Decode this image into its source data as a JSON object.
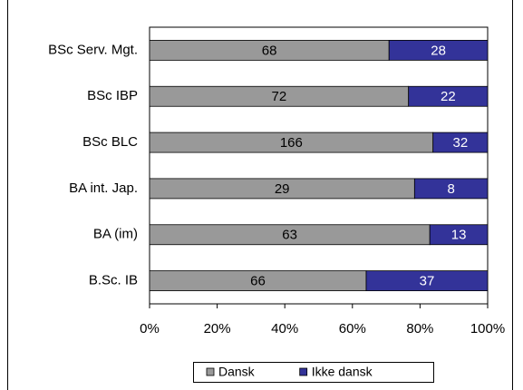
{
  "chart_data": {
    "type": "bar",
    "orientation": "horizontal",
    "stacked": "percent",
    "categories": [
      "BSc Serv. Mgt.",
      "BSc IBP",
      "BSc BLC",
      "BA int. Jap.",
      "BA (im)",
      "B.Sc. IB"
    ],
    "series": [
      {
        "name": "Dansk",
        "color": "#999999",
        "label_color": "#000000",
        "values": [
          68,
          72,
          166,
          29,
          63,
          66
        ]
      },
      {
        "name": "Ikke dansk",
        "color": "#333399",
        "label_color": "#ffffff",
        "values": [
          28,
          22,
          32,
          8,
          13,
          37
        ]
      }
    ],
    "xlim": [
      0,
      100
    ],
    "xticks": [
      {
        "value": 0,
        "label": "0%"
      },
      {
        "value": 20,
        "label": "20%"
      },
      {
        "value": 40,
        "label": "40%"
      },
      {
        "value": 60,
        "label": "60%"
      },
      {
        "value": 80,
        "label": "80%"
      },
      {
        "value": 100,
        "label": "100%"
      }
    ],
    "grid": false,
    "legend": "bottom"
  }
}
